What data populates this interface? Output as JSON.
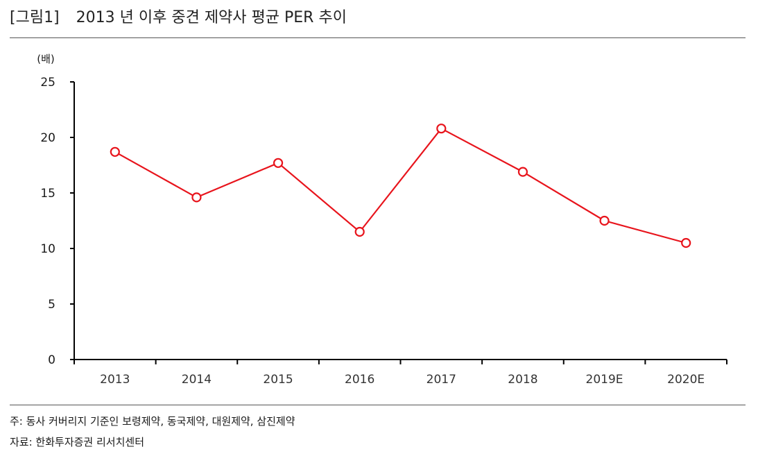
{
  "header": {
    "figure_tag": "[그림1]",
    "title": "2013 년 이후 중견 제약사 평균 PER 추이"
  },
  "footer": {
    "note": "주: 동사 커버리지 기준인 보령제약, 동국제약, 대원제약, 삼진제약",
    "source": "자료: 한화투자증권 리서치센터"
  },
  "colors": {
    "series": "#e8141c",
    "axis": "#000000"
  },
  "chart_data": {
    "type": "line",
    "title": "2013 년 이후 중견 제약사 평균 PER 추이",
    "ylabel": "(배)",
    "xlabel": "",
    "categories": [
      "2013",
      "2014",
      "2015",
      "2016",
      "2017",
      "2018",
      "2019E",
      "2020E"
    ],
    "series": [
      {
        "values": [
          18.7,
          14.6,
          17.7,
          11.5,
          20.8,
          16.9,
          12.5,
          10.5
        ],
        "marker": "hollow-circle"
      }
    ],
    "ylim": [
      0,
      25
    ],
    "yticks": [
      "0",
      "5",
      "10",
      "15",
      "20",
      "25"
    ],
    "grid": false,
    "legend": "none"
  }
}
